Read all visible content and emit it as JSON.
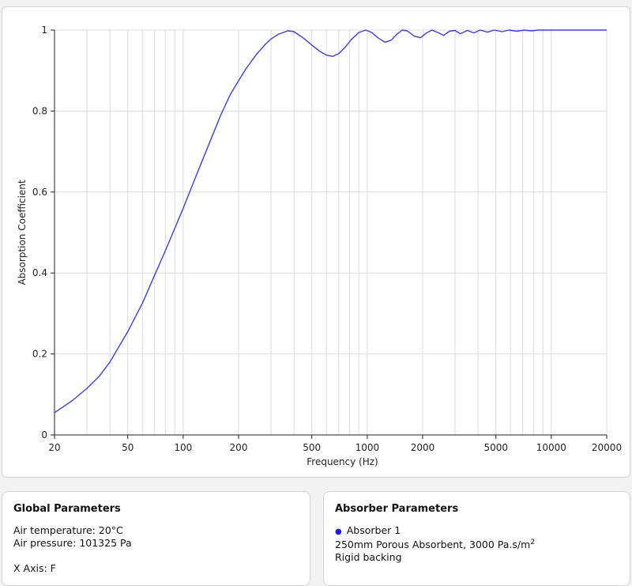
{
  "chart_data": {
    "type": "line",
    "xlabel": "Frequency (Hz)",
    "ylabel": "Absorption Coefficient",
    "x_scale": "log",
    "xlim": [
      20,
      20000
    ],
    "ylim": [
      0,
      1
    ],
    "x_ticks": [
      20,
      50,
      100,
      200,
      500,
      1000,
      2000,
      5000,
      10000,
      20000
    ],
    "x_tick_labels": [
      "20",
      "50",
      "100",
      "200",
      "500",
      "1000",
      "2000",
      "5000",
      "10000",
      "20000"
    ],
    "y_ticks": [
      0,
      0.2,
      0.4,
      0.6,
      0.8,
      1
    ],
    "y_tick_labels": [
      "0",
      "0.2",
      "0.4",
      "0.6",
      "0.8",
      "1"
    ],
    "grid": true,
    "series": [
      {
        "color": "#3b3bff",
        "points": [
          [
            20,
            0.055
          ],
          [
            25,
            0.085
          ],
          [
            30,
            0.115
          ],
          [
            35,
            0.145
          ],
          [
            40,
            0.18
          ],
          [
            50,
            0.255
          ],
          [
            60,
            0.325
          ],
          [
            70,
            0.395
          ],
          [
            80,
            0.455
          ],
          [
            90,
            0.51
          ],
          [
            100,
            0.56
          ],
          [
            120,
            0.65
          ],
          [
            140,
            0.725
          ],
          [
            160,
            0.79
          ],
          [
            180,
            0.84
          ],
          [
            200,
            0.875
          ],
          [
            220,
            0.905
          ],
          [
            250,
            0.94
          ],
          [
            280,
            0.965
          ],
          [
            300,
            0.978
          ],
          [
            330,
            0.99
          ],
          [
            370,
            0.998
          ],
          [
            400,
            0.996
          ],
          [
            450,
            0.98
          ],
          [
            500,
            0.963
          ],
          [
            550,
            0.948
          ],
          [
            600,
            0.938
          ],
          [
            650,
            0.935
          ],
          [
            700,
            0.942
          ],
          [
            760,
            0.958
          ],
          [
            820,
            0.977
          ],
          [
            900,
            0.994
          ],
          [
            980,
            1.0
          ],
          [
            1050,
            0.995
          ],
          [
            1150,
            0.98
          ],
          [
            1250,
            0.97
          ],
          [
            1350,
            0.975
          ],
          [
            1450,
            0.99
          ],
          [
            1550,
            1.0
          ],
          [
            1650,
            0.998
          ],
          [
            1800,
            0.985
          ],
          [
            1950,
            0.981
          ],
          [
            2100,
            0.993
          ],
          [
            2250,
            1.0
          ],
          [
            2450,
            0.993
          ],
          [
            2600,
            0.987
          ],
          [
            2800,
            0.997
          ],
          [
            3000,
            0.999
          ],
          [
            3200,
            0.991
          ],
          [
            3500,
            0.999
          ],
          [
            3800,
            0.993
          ],
          [
            4100,
            1.0
          ],
          [
            4500,
            0.995
          ],
          [
            4900,
            1.0
          ],
          [
            5400,
            0.996
          ],
          [
            5900,
            1.0
          ],
          [
            6500,
            0.997
          ],
          [
            7100,
            1.0
          ],
          [
            7800,
            0.998
          ],
          [
            8500,
            1.0
          ],
          [
            10000,
            1.0
          ],
          [
            15000,
            1.0
          ],
          [
            20000,
            1.0
          ]
        ]
      }
    ]
  },
  "global_params": {
    "title": "Global Parameters",
    "air_temperature": "Air temperature: 20°C",
    "air_pressure": "Air pressure: 101325 Pa",
    "x_axis": "X Axis: F"
  },
  "absorber_params": {
    "title": "Absorber Parameters",
    "absorber_name": "Absorber 1",
    "description": "250mm Porous Absorbent, 3000 Pa.s/m",
    "description_sup": "2",
    "backing": "Rigid backing",
    "series_color": "#1a1aff"
  }
}
